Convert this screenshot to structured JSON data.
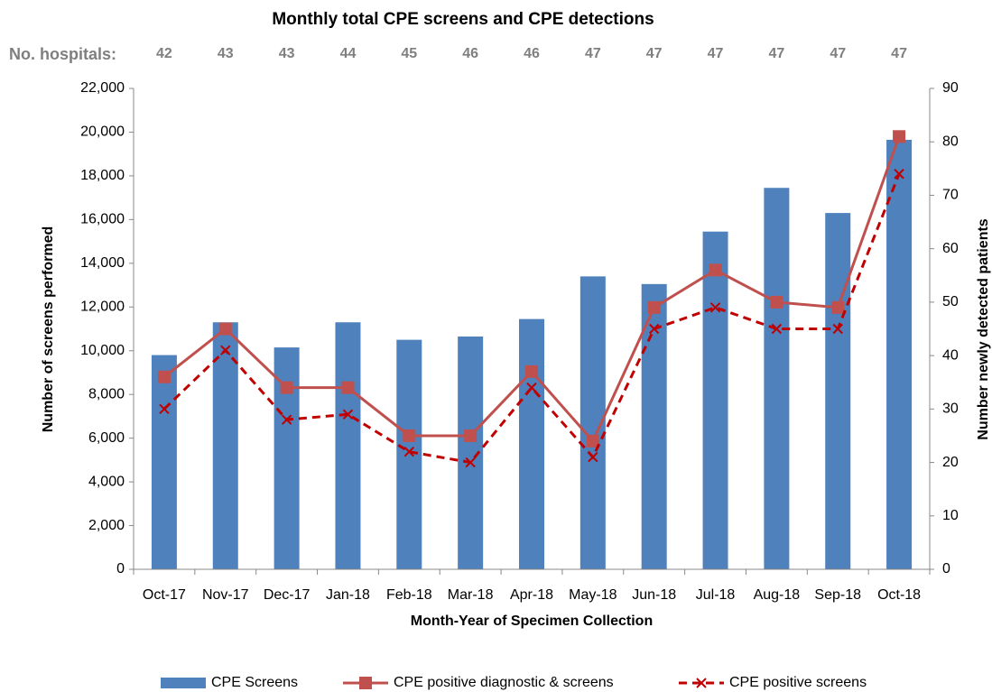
{
  "chart_data": {
    "type": "bar_line",
    "title": "Monthly total CPE screens and CPE detections",
    "hospitals_label": "No. hospitals:",
    "hospitals": [
      42,
      43,
      43,
      44,
      45,
      46,
      46,
      47,
      47,
      47,
      47,
      47,
      47
    ],
    "x_label": "Month-Year of Specimen Collection",
    "y_label": "Number of screens performed",
    "y2_label": "Number newly detected patients",
    "categories": [
      "Oct-17",
      "Nov-17",
      "Dec-17",
      "Jan-18",
      "Feb-18",
      "Mar-18",
      "Apr-18",
      "May-18",
      "Jun-18",
      "Jul-18",
      "Aug-18",
      "Sep-18",
      "Oct-18"
    ],
    "series": [
      {
        "name": "CPE Screens",
        "color": "#4f81bd",
        "kind": "bar",
        "values": [
          9800,
          11300,
          10150,
          11300,
          10500,
          10650,
          11450,
          13400,
          13050,
          15450,
          17450,
          16300,
          19650
        ]
      },
      {
        "name": "CPE positive diagnostic & screens",
        "color": "#c0504d",
        "kind": "line",
        "axis": "y2",
        "values": [
          36,
          45,
          34,
          34,
          25,
          25,
          37,
          24,
          49,
          56,
          50,
          49,
          81
        ]
      },
      {
        "name": "CPE positive screens",
        "color": "#c00000",
        "kind": "dashed",
        "axis": "y2",
        "values": [
          30,
          41,
          28,
          29,
          22,
          20,
          34,
          21,
          45,
          49,
          45,
          45,
          74
        ]
      }
    ],
    "ylim": [
      0,
      22000
    ],
    "yticks": [
      0,
      {
        "value": 2000,
        "label": "2,000"
      },
      {
        "value": 4000,
        "label": "4,000"
      },
      {
        "value": 6000,
        "label": "6,000"
      },
      {
        "value": 8000,
        "label": "8,000"
      },
      {
        "value": 10000,
        "label": "10,000"
      },
      {
        "value": 12000,
        "label": "12,000"
      },
      {
        "value": 14000,
        "label": "14,000"
      },
      {
        "value": 16000,
        "label": "16,000"
      },
      {
        "value": 18000,
        "label": "18,000"
      },
      {
        "value": 20000,
        "label": "20,000"
      },
      {
        "value": 22000,
        "label": "22,000"
      }
    ],
    "y2lim": [
      0,
      90
    ],
    "y2ticks": [
      0,
      10,
      20,
      30,
      40,
      50,
      60,
      70,
      80,
      90
    ]
  }
}
